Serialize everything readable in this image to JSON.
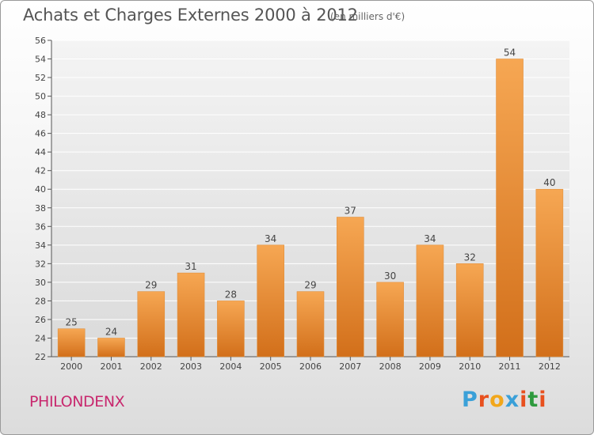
{
  "header": {
    "title": "Achats et Charges Externes 2000 à 2012",
    "subtitle": "(en milliers d'€)"
  },
  "commune": "PHILONDENX",
  "logo": {
    "text": "Proxiti",
    "letter_colors": [
      "#3aa0d8",
      "#e8501e",
      "#f2a71b",
      "#3aa0d8",
      "#e8501e",
      "#2e9a3e",
      "#e8501e"
    ]
  },
  "colors": {
    "bar_top": "#f6a753",
    "bar_bottom": "#d26f1a",
    "grid": "#ffffff",
    "text": "#444444"
  },
  "chart_data": {
    "type": "bar",
    "title": "Achats et Charges Externes 2000 à 2012",
    "subtitle": "(en milliers d'€)",
    "categories": [
      "2000",
      "2001",
      "2002",
      "2003",
      "2004",
      "2005",
      "2006",
      "2007",
      "2008",
      "2009",
      "2010",
      "2011",
      "2012"
    ],
    "values": [
      25,
      24,
      29,
      31,
      28,
      34,
      29,
      37,
      30,
      34,
      32,
      54,
      40
    ],
    "ylim": [
      22,
      56
    ],
    "ytick_step": 2,
    "grid": true,
    "data_labels": true
  }
}
